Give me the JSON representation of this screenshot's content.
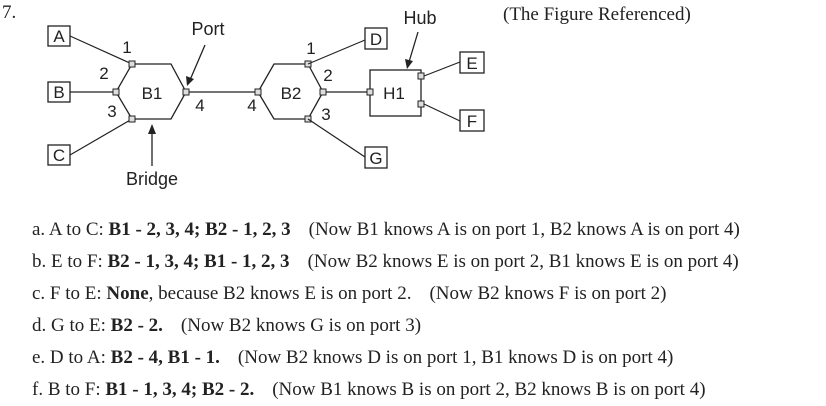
{
  "question_number": "7.",
  "caption": "(The Figure Referenced)",
  "diagram": {
    "stations": [
      "A",
      "B",
      "C",
      "D",
      "E",
      "F",
      "G"
    ],
    "bridges": [
      "B1",
      "B2"
    ],
    "hub": "H1",
    "callouts": {
      "port": "Port",
      "hub": "Hub",
      "bridge": "Bridge"
    },
    "b1_ports": [
      "1",
      "2",
      "3",
      "4"
    ],
    "b2_ports": [
      "1",
      "2",
      "3",
      "4"
    ]
  },
  "answers": [
    {
      "prefix": "a. A to C: ",
      "bold": "B1 - 2, 3, 4; B2 - 1, 2, 3",
      "mid": "",
      "note": "(Now B1 knows A is on port 1, B2 knows A is on port 4)"
    },
    {
      "prefix": "b. E to F: ",
      "bold": "B2 - 1, 3, 4; B1 - 1, 2, 3",
      "mid": "",
      "note": "(Now B2 knows E is on port 2, B1 knows E is on port 4)"
    },
    {
      "prefix": "c. F to E: ",
      "bold": "None",
      "mid": ", because B2 knows E is on port 2.",
      "note": "(Now B2 knows F is on port 2)"
    },
    {
      "prefix": "d. G to E: ",
      "bold": "B2 - 2.",
      "mid": "",
      "note": "(Now B2 knows G is on port 3)"
    },
    {
      "prefix": "e. D to A: ",
      "bold": "B2 - 4, B1 - 1.",
      "mid": "",
      "note": "(Now B2 knows D is on port 1, B1 knows D is on port 4)"
    },
    {
      "prefix": "f. B to F: ",
      "bold": "B1 - 1, 3, 4; B2 - 2.",
      "mid": "",
      "note": "(Now B1 knows B is on port 2, B2 knows B is on port 4)"
    }
  ]
}
